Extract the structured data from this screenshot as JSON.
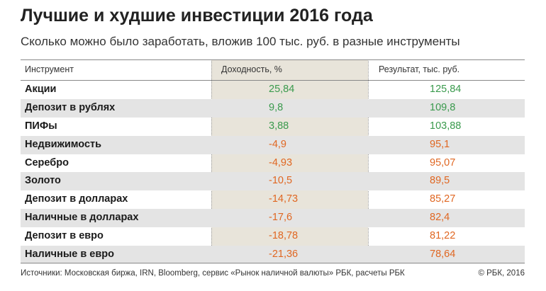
{
  "header": {
    "title": "Лучшие и худшие инвестиции 2016 года",
    "subtitle": "Сколько можно было заработать, вложив 100 тыс. руб. в разные инструменты"
  },
  "chart_data": {
    "type": "table",
    "columns": [
      "Инструмент",
      "Доходность, %",
      "Результат, тыс. руб."
    ],
    "rows": [
      {
        "name": "Акции",
        "yield": "25,84",
        "result": "125,84"
      },
      {
        "name": "Депозит в рублях",
        "yield": "9,8",
        "result": "109,8"
      },
      {
        "name": "ПИФы",
        "yield": "3,88",
        "result": "103,88"
      },
      {
        "name": "Недвижимость",
        "yield": "-4,9",
        "result": "95,1"
      },
      {
        "name": "Серебро",
        "yield": "-4,93",
        "result": "95,07"
      },
      {
        "name": "Золото",
        "yield": "-10,5",
        "result": "89,5"
      },
      {
        "name": "Депозит в долларах",
        "yield": "-14,73",
        "result": "85,27"
      },
      {
        "name": "Наличные в долларах",
        "yield": "-17,6",
        "result": "82,4"
      },
      {
        "name": "Депозит в евро",
        "yield": "-18,78",
        "result": "81,22"
      },
      {
        "name": "Наличные в евро",
        "yield": "-21,36",
        "result": "78,64"
      }
    ],
    "colors": {
      "positive": "#3a9a4d",
      "negative": "#e06722",
      "highlight_column": "#d6cebc"
    }
  },
  "footer": {
    "source": "Источники: Московская биржа, IRN, Bloomberg, сервис «Рынок наличной валюты» РБК, расчеты РБК",
    "copyright": "© РБК, 2016"
  }
}
